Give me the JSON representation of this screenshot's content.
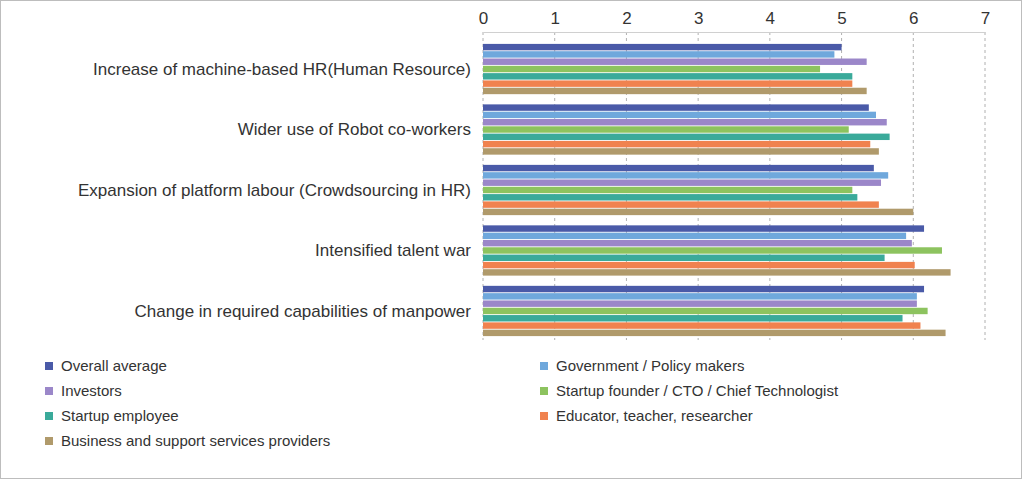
{
  "chart_data": {
    "type": "bar",
    "orientation": "horizontal",
    "categories": [
      "Increase of machine-based HR(Human Resource)",
      "Wider use of Robot co-workers",
      "Expansion of platform labour (Crowdsourcing in HR)",
      "Intensified talent war",
      "Change in required capabilities of manpower"
    ],
    "series": [
      {
        "name": "Overall average",
        "color": "#4a5aa8",
        "values": [
          5.0,
          5.38,
          5.45,
          6.15,
          6.15
        ]
      },
      {
        "name": "Government / Policy makers",
        "color": "#6fa8dc",
        "values": [
          4.9,
          5.48,
          5.65,
          5.9,
          6.05
        ]
      },
      {
        "name": "Investors",
        "color": "#9b87c9",
        "values": [
          5.35,
          5.63,
          5.55,
          5.98,
          6.05
        ]
      },
      {
        "name": "Startup founder / CTO / Chief Technologist",
        "color": "#8dc35f",
        "values": [
          4.7,
          5.1,
          5.15,
          6.4,
          6.2
        ]
      },
      {
        "name": "Startup employee",
        "color": "#3aaa9a",
        "values": [
          5.15,
          5.67,
          5.22,
          5.6,
          5.85
        ]
      },
      {
        "name": "Educator, teacher, researcher",
        "color": "#f0824f",
        "values": [
          5.15,
          5.4,
          5.52,
          6.02,
          6.1
        ]
      },
      {
        "name": "Business and support services providers",
        "color": "#b09a6b",
        "values": [
          5.35,
          5.52,
          6.0,
          6.52,
          6.45
        ]
      }
    ],
    "xlim": [
      0,
      7
    ],
    "xticks": [
      0,
      1,
      2,
      3,
      4,
      5,
      6,
      7
    ],
    "grid": true,
    "legend": "bottom"
  }
}
